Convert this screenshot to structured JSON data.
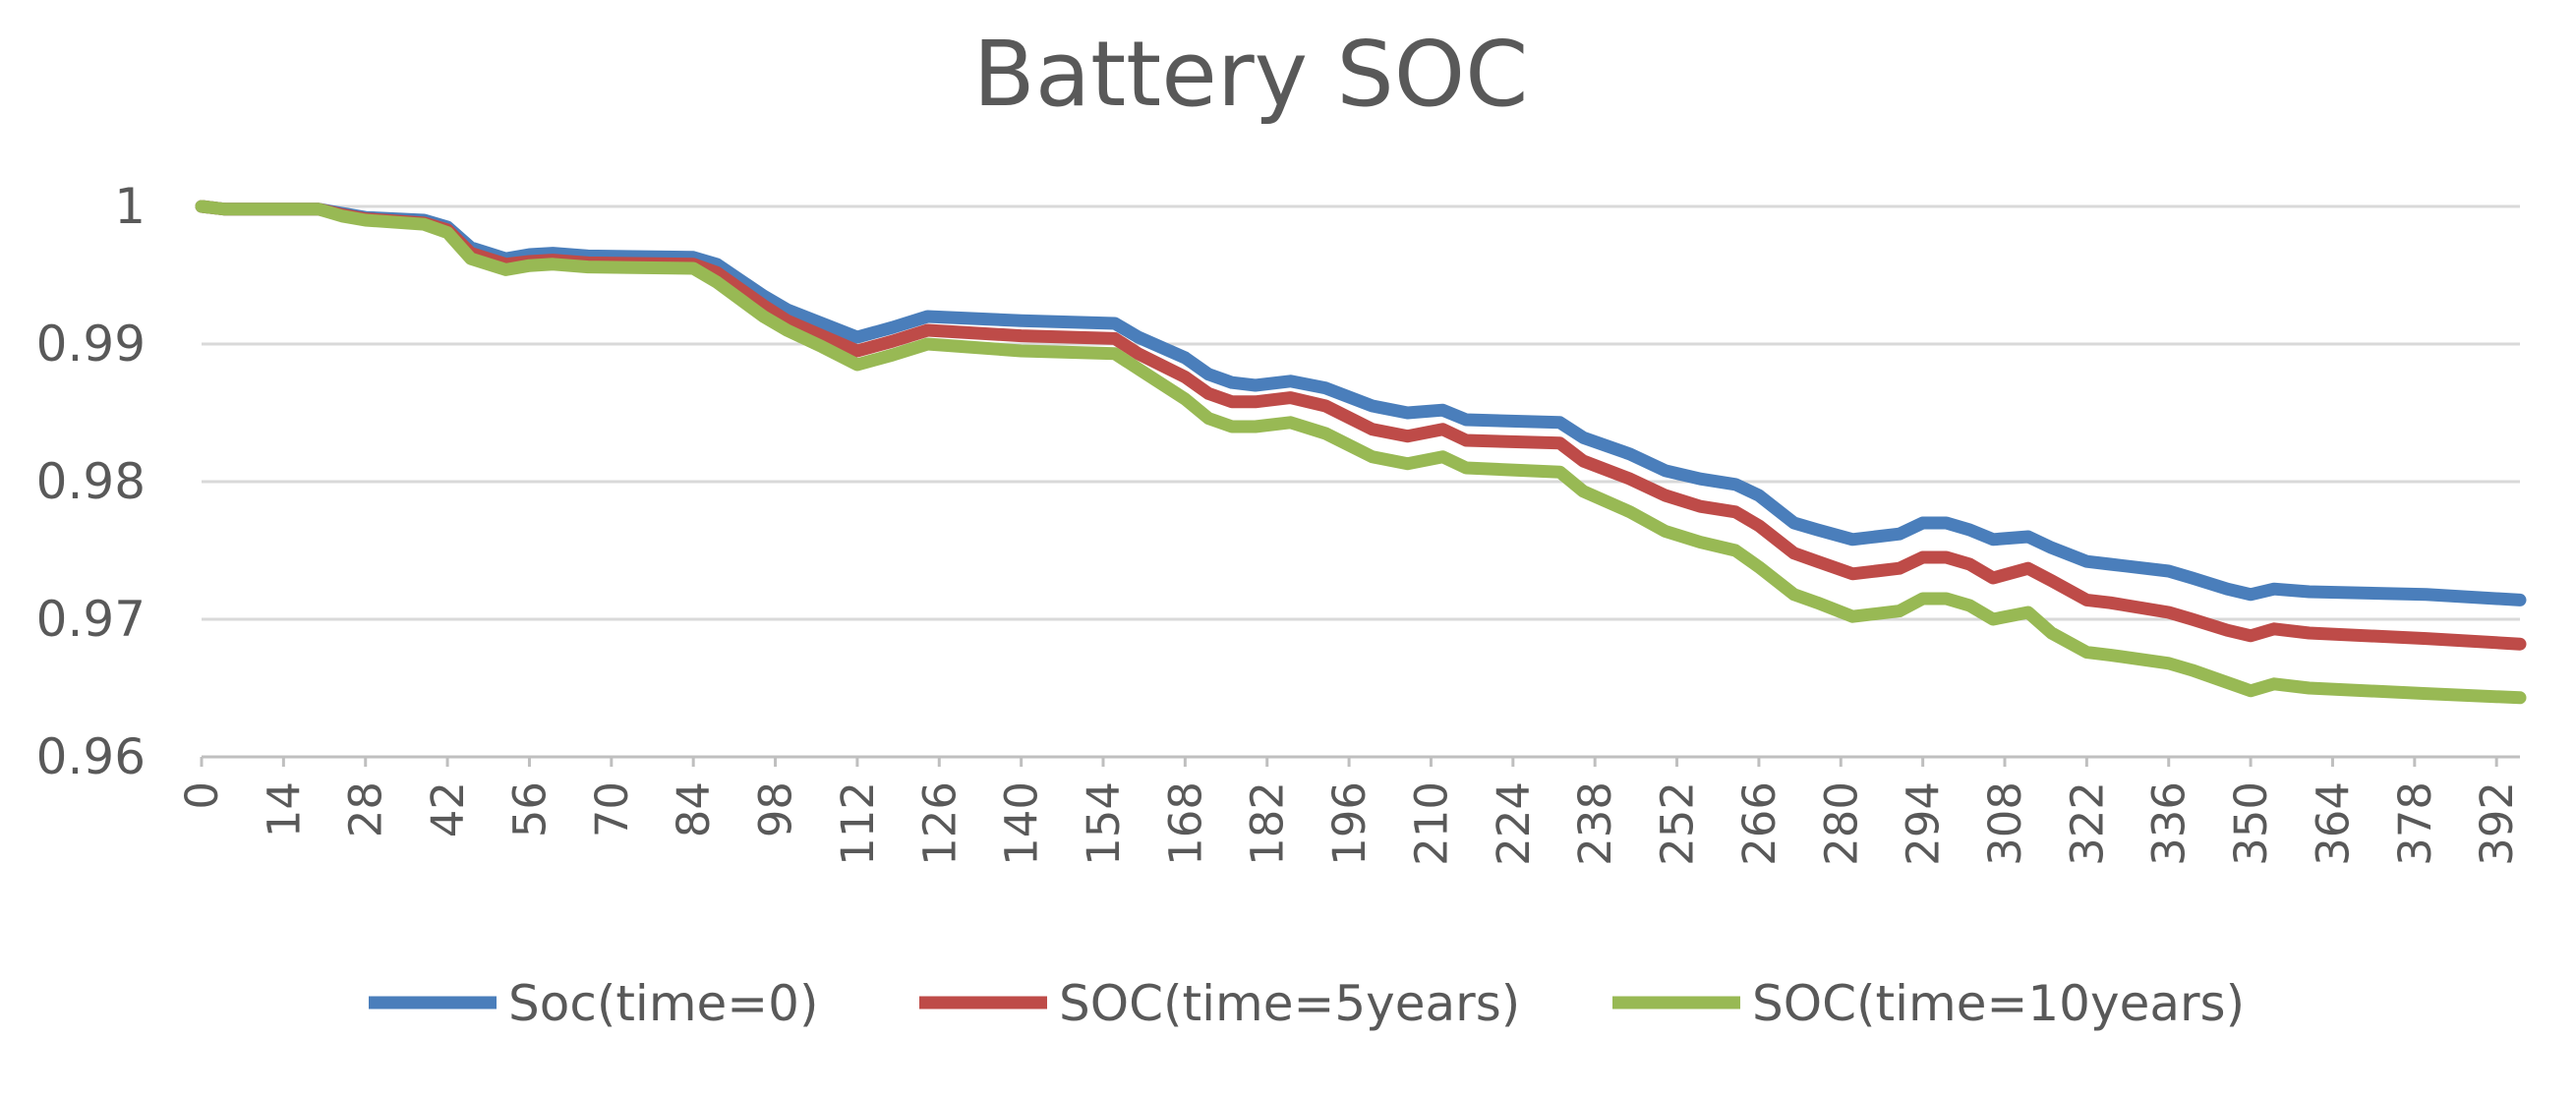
{
  "chart_data": {
    "type": "line",
    "title": "Battery SOC",
    "xlabel": "",
    "ylabel": "",
    "ylim": [
      0.96,
      1
    ],
    "xlim": [
      0,
      396
    ],
    "y_ticks": [
      0.96,
      0.97,
      0.98,
      0.99,
      1
    ],
    "y_tick_labels": [
      "0.96",
      "0.97",
      "0.98",
      "0.99",
      "1"
    ],
    "x_ticks": [
      0,
      14,
      28,
      42,
      56,
      70,
      84,
      98,
      112,
      126,
      140,
      154,
      168,
      182,
      196,
      210,
      224,
      238,
      252,
      266,
      280,
      294,
      308,
      322,
      336,
      350,
      364,
      378,
      392
    ],
    "grid": true,
    "legend": "bottom",
    "series": [
      {
        "name": "Soc(time=0)",
        "color": "#4a7ebb",
        "x": [
          0,
          4,
          20,
          24,
          28,
          38,
          42,
          46,
          52,
          56,
          60,
          66,
          84,
          88,
          96,
          100,
          106,
          112,
          118,
          124,
          140,
          156,
          160,
          168,
          172,
          176,
          180,
          186,
          192,
          200,
          206,
          212,
          216,
          232,
          236,
          244,
          250,
          256,
          262,
          266,
          272,
          276,
          282,
          286,
          290,
          294,
          298,
          302,
          306,
          312,
          316,
          322,
          326,
          336,
          340,
          346,
          350,
          354,
          360,
          380,
          396
        ],
        "values": [
          1,
          0.9998,
          0.9998,
          0.9995,
          0.9992,
          0.999,
          0.9985,
          0.997,
          0.9962,
          0.9965,
          0.9966,
          0.9964,
          0.9963,
          0.9958,
          0.9935,
          0.9925,
          0.9915,
          0.9905,
          0.9912,
          0.992,
          0.9917,
          0.9915,
          0.9905,
          0.989,
          0.9878,
          0.9872,
          0.987,
          0.9873,
          0.9868,
          0.9855,
          0.985,
          0.9852,
          0.9845,
          0.9843,
          0.9832,
          0.982,
          0.9808,
          0.9802,
          0.9798,
          0.979,
          0.977,
          0.9765,
          0.9758,
          0.976,
          0.9762,
          0.977,
          0.977,
          0.9765,
          0.9758,
          0.976,
          0.9752,
          0.9742,
          0.974,
          0.9735,
          0.973,
          0.9722,
          0.9718,
          0.9722,
          0.972,
          0.9718,
          0.9714
        ]
      },
      {
        "name": "SOC(time=5years)",
        "color": "#be4b48",
        "x": [
          0,
          4,
          20,
          24,
          28,
          38,
          42,
          46,
          52,
          56,
          60,
          66,
          84,
          88,
          96,
          100,
          106,
          112,
          118,
          124,
          140,
          156,
          160,
          168,
          172,
          176,
          180,
          186,
          192,
          200,
          206,
          212,
          216,
          232,
          236,
          244,
          250,
          256,
          262,
          266,
          272,
          276,
          282,
          286,
          290,
          294,
          298,
          302,
          306,
          312,
          316,
          322,
          326,
          336,
          340,
          346,
          350,
          354,
          360,
          380,
          396
        ],
        "values": [
          1,
          0.9998,
          0.9998,
          0.9994,
          0.9991,
          0.9988,
          0.9983,
          0.9966,
          0.9958,
          0.996,
          0.9961,
          0.9959,
          0.9958,
          0.9952,
          0.9928,
          0.9917,
          0.9906,
          0.9895,
          0.9902,
          0.991,
          0.9906,
          0.9904,
          0.9893,
          0.9876,
          0.9864,
          0.9858,
          0.9858,
          0.9861,
          0.9855,
          0.9838,
          0.9833,
          0.9838,
          0.983,
          0.9828,
          0.9815,
          0.9802,
          0.979,
          0.9782,
          0.9778,
          0.9768,
          0.9748,
          0.9742,
          0.9733,
          0.9735,
          0.9737,
          0.9745,
          0.9745,
          0.974,
          0.973,
          0.9737,
          0.9728,
          0.9714,
          0.9712,
          0.9705,
          0.97,
          0.9692,
          0.9688,
          0.9693,
          0.969,
          0.9686,
          0.9682
        ]
      },
      {
        "name": "SOC(time=10years)",
        "color": "#98b954",
        "x": [
          0,
          4,
          20,
          24,
          28,
          38,
          42,
          46,
          52,
          56,
          60,
          66,
          84,
          88,
          96,
          100,
          106,
          112,
          118,
          124,
          140,
          156,
          160,
          168,
          172,
          176,
          180,
          186,
          192,
          200,
          206,
          212,
          216,
          232,
          236,
          244,
          250,
          256,
          262,
          266,
          272,
          276,
          282,
          286,
          290,
          294,
          298,
          302,
          306,
          312,
          316,
          322,
          326,
          336,
          340,
          346,
          350,
          354,
          360,
          380,
          396
        ],
        "values": [
          1,
          0.9998,
          0.9998,
          0.9993,
          0.999,
          0.9987,
          0.9981,
          0.9962,
          0.9954,
          0.9957,
          0.9958,
          0.9956,
          0.9955,
          0.9945,
          0.992,
          0.991,
          0.9898,
          0.9885,
          0.9892,
          0.99,
          0.9895,
          0.9893,
          0.9882,
          0.986,
          0.9846,
          0.984,
          0.984,
          0.9843,
          0.9835,
          0.9818,
          0.9813,
          0.9818,
          0.981,
          0.9807,
          0.9793,
          0.9778,
          0.9764,
          0.9756,
          0.975,
          0.9738,
          0.9718,
          0.9712,
          0.9702,
          0.9704,
          0.9706,
          0.9715,
          0.9715,
          0.971,
          0.97,
          0.9705,
          0.969,
          0.9676,
          0.9674,
          0.9668,
          0.9663,
          0.9654,
          0.9648,
          0.9653,
          0.965,
          0.9646,
          0.9643
        ]
      }
    ]
  }
}
